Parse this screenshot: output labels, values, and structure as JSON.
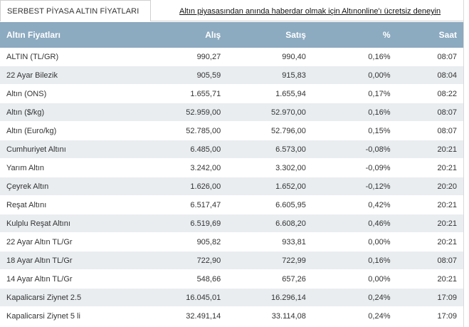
{
  "tab": {
    "title": "SERBEST PİYASA ALTIN FİYATLARI"
  },
  "promo": {
    "text": "Altın piyasasından anında haberdar olmak için Altınonline'ı ücretsiz deneyin"
  },
  "table": {
    "headers": [
      "Altın Fiyatları",
      "Alış",
      "Satış",
      "%",
      "Saat"
    ],
    "rows": [
      {
        "name": "ALTIN (TL/GR)",
        "buy": "990,27",
        "sell": "990,40",
        "pct": "0,16%",
        "time": "08:07"
      },
      {
        "name": "22 Ayar Bilezik",
        "buy": "905,59",
        "sell": "915,83",
        "pct": "0,00%",
        "time": "08:04"
      },
      {
        "name": "Altın (ONS)",
        "buy": "1.655,71",
        "sell": "1.655,94",
        "pct": "0,17%",
        "time": "08:22"
      },
      {
        "name": "Altın ($/kg)",
        "buy": "52.959,00",
        "sell": "52.970,00",
        "pct": "0,16%",
        "time": "08:07"
      },
      {
        "name": "Altın (Euro/kg)",
        "buy": "52.785,00",
        "sell": "52.796,00",
        "pct": "0,15%",
        "time": "08:07"
      },
      {
        "name": "Cumhuriyet Altını",
        "buy": "6.485,00",
        "sell": "6.573,00",
        "pct": "-0,08%",
        "time": "20:21"
      },
      {
        "name": "Yarım Altın",
        "buy": "3.242,00",
        "sell": "3.302,00",
        "pct": "-0,09%",
        "time": "20:21"
      },
      {
        "name": "Çeyrek Altın",
        "buy": "1.626,00",
        "sell": "1.652,00",
        "pct": "-0,12%",
        "time": "20:20"
      },
      {
        "name": "Reşat Altını",
        "buy": "6.517,47",
        "sell": "6.605,95",
        "pct": "0,42%",
        "time": "20:21"
      },
      {
        "name": "Kulplu Reşat Altını",
        "buy": "6.519,69",
        "sell": "6.608,20",
        "pct": "0,46%",
        "time": "20:21"
      },
      {
        "name": "22 Ayar Altın TL/Gr",
        "buy": "905,82",
        "sell": "933,81",
        "pct": "0,00%",
        "time": "20:21"
      },
      {
        "name": "18 Ayar Altın TL/Gr",
        "buy": "722,90",
        "sell": "722,99",
        "pct": "0,16%",
        "time": "08:07"
      },
      {
        "name": "14 Ayar Altın TL/Gr",
        "buy": "548,66",
        "sell": "657,26",
        "pct": "0,00%",
        "time": "20:21"
      },
      {
        "name": "Kapalicarsi Ziynet 2.5",
        "buy": "16.045,01",
        "sell": "16.296,14",
        "pct": "0,24%",
        "time": "17:09"
      },
      {
        "name": "Kapalicarsi Ziynet 5 li",
        "buy": "32.491,14",
        "sell": "33.114,08",
        "pct": "0,24%",
        "time": "17:09"
      }
    ]
  },
  "colors": {
    "header_bg": "#8caac0",
    "row_alt_bg": "#e9edf0"
  }
}
